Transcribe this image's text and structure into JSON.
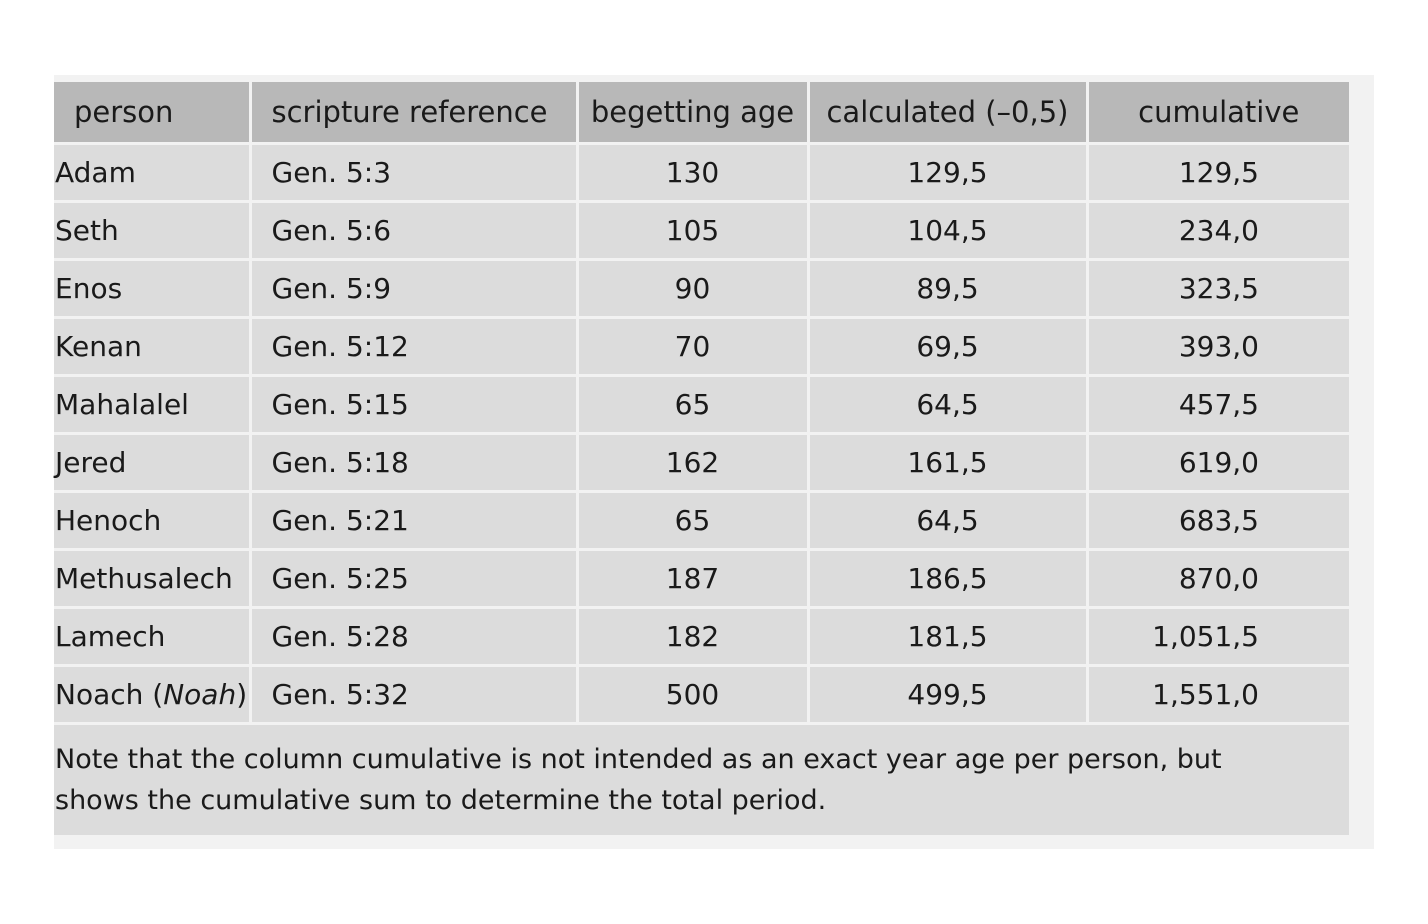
{
  "table": {
    "headers": [
      "person",
      "scripture reference",
      "begetting age",
      "calculated (–0,5)",
      "cumulative"
    ],
    "rows": [
      {
        "person": "Adam",
        "person_italic": "",
        "reference": "Gen. 5:3",
        "age": "130",
        "calculated": "129,5",
        "cumulative": "129,5"
      },
      {
        "person": "Seth",
        "person_italic": "",
        "reference": "Gen. 5:6",
        "age": "105",
        "calculated": "104,5",
        "cumulative": "234,0"
      },
      {
        "person": "Enos",
        "person_italic": "",
        "reference": "Gen. 5:9",
        "age": "90",
        "calculated": "89,5",
        "cumulative": "323,5"
      },
      {
        "person": "Kenan",
        "person_italic": "",
        "reference": "Gen. 5:12",
        "age": "70",
        "calculated": "69,5",
        "cumulative": "393,0"
      },
      {
        "person": "Mahalalel",
        "person_italic": "",
        "reference": "Gen. 5:15",
        "age": "65",
        "calculated": "64,5",
        "cumulative": "457,5"
      },
      {
        "person": "Jered",
        "person_italic": "",
        "reference": "Gen. 5:18",
        "age": "162",
        "calculated": "161,5",
        "cumulative": "619,0"
      },
      {
        "person": "Henoch",
        "person_italic": "",
        "reference": "Gen. 5:21",
        "age": "65",
        "calculated": "64,5",
        "cumulative": "683,5"
      },
      {
        "person": "Methusalech",
        "person_italic": "",
        "reference": "Gen. 5:25",
        "age": "187",
        "calculated": "186,5",
        "cumulative": "870,0"
      },
      {
        "person": "Lamech",
        "person_italic": "",
        "reference": "Gen. 5:28",
        "age": "182",
        "calculated": "181,5",
        "cumulative": "1,051,5"
      },
      {
        "person": "Noach",
        "person_italic": "Noah",
        "reference": "Gen. 5:32",
        "age": "500",
        "calculated": "499,5",
        "cumulative": "1,551,0"
      }
    ]
  },
  "note": {
    "line1": "Note that the column cumulative is not intended as an exact year age per person, but",
    "line2": "shows the cumulative sum to determine the total period."
  },
  "colors": {
    "header_bg": "#b8b8b8",
    "cell_bg": "#dcdcdc",
    "grid": "#f2f2f2"
  }
}
